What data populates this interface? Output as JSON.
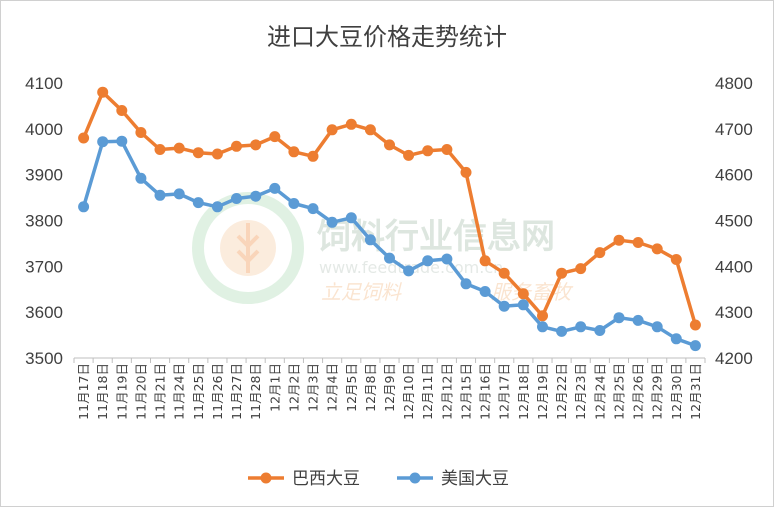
{
  "chart_data": {
    "type": "line",
    "title": "进口大豆价格走势统计",
    "categories": [
      "11月17日",
      "11月18日",
      "11月19日",
      "11月20日",
      "11月21日",
      "11月24日",
      "11月25日",
      "11月26日",
      "11月27日",
      "11月28日",
      "12月1日",
      "12月2日",
      "12月3日",
      "12月4日",
      "12月5日",
      "12月8日",
      "12月9日",
      "12月10日",
      "12月11日",
      "12月12日",
      "12月15日",
      "12月16日",
      "12月17日",
      "12月18日",
      "12月19日",
      "12月22日",
      "12月23日",
      "12月24日",
      "12月25日",
      "12月26日",
      "12月29日",
      "12月30日",
      "12月31日"
    ],
    "y_left": {
      "ylim": [
        3500,
        4100
      ],
      "ticks": [
        "3500",
        "3600",
        "3700",
        "3800",
        "3900",
        "4000",
        "4100"
      ]
    },
    "y_right": {
      "ylim": [
        4200,
        4800
      ],
      "ticks": [
        "4200",
        "4300",
        "4400",
        "4500",
        "4600",
        "4700",
        "4800"
      ]
    },
    "series": [
      {
        "name": "巴西大豆",
        "axis": "left",
        "color": "#ed7d31",
        "values": [
          3980,
          4080,
          4040,
          3992,
          3955,
          3958,
          3948,
          3945,
          3962,
          3965,
          3983,
          3950,
          3940,
          3998,
          4010,
          3998,
          3965,
          3942,
          3952,
          3955,
          3905,
          3712,
          3685,
          3640,
          3592,
          3685,
          3695,
          3730,
          3757,
          3752,
          3738,
          3715,
          3572
        ]
      },
      {
        "name": "美国大豆",
        "axis": "right",
        "color": "#5b9bd5",
        "values": [
          4530,
          4672,
          4673,
          4592,
          4555,
          4558,
          4539,
          4530,
          4548,
          4553,
          4570,
          4537,
          4526,
          4496,
          4506,
          4458,
          4418,
          4390,
          4412,
          4416,
          4362,
          4345,
          4313,
          4316,
          4268,
          4258,
          4268,
          4260,
          4288,
          4282,
          4268,
          4242,
          4227
        ]
      }
    ],
    "grid": false,
    "legend_position": "bottom"
  },
  "watermark": {
    "line1": "饲料行业信息网",
    "line2": "www.feedtrade.com.cn",
    "line3_left": "立足饲料",
    "line3_right": "服务畜牧"
  }
}
